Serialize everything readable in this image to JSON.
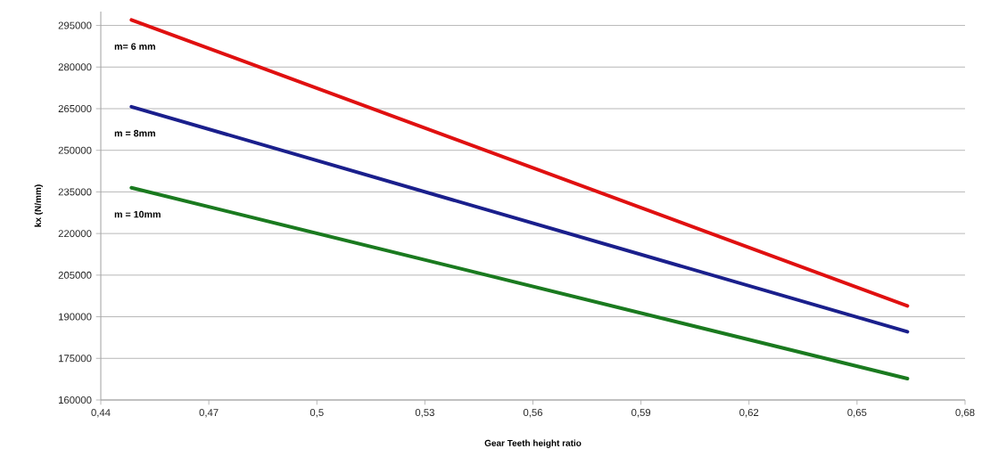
{
  "chart_data": {
    "type": "line",
    "xlabel": "Gear Teeth height ratio",
    "ylabel": "kx (N/mm)",
    "x": [
      0.4485,
      0.664
    ],
    "series": [
      {
        "name": "m= 6 mm",
        "color": "#e01010",
        "values": [
          297000,
          193900
        ]
      },
      {
        "name": "m =  8mm",
        "color": "#1a1f8c",
        "values": [
          265700,
          184600
        ]
      },
      {
        "name": "m = 10mm",
        "color": "#1a7a1f",
        "values": [
          236500,
          167700
        ]
      }
    ],
    "xlim": [
      0.44,
      0.68
    ],
    "xticks": [
      {
        "value": 0.44,
        "label": "0,44"
      },
      {
        "value": 0.47,
        "label": "0,47"
      },
      {
        "value": 0.5,
        "label": "0,5"
      },
      {
        "value": 0.53,
        "label": "0,53"
      },
      {
        "value": 0.56,
        "label": "0,56"
      },
      {
        "value": 0.59,
        "label": "0,59"
      },
      {
        "value": 0.62,
        "label": "0,62"
      },
      {
        "value": 0.65,
        "label": "0,65"
      },
      {
        "value": 0.68,
        "label": "0,68"
      }
    ],
    "ylim": [
      160000,
      300000
    ],
    "yticks": [
      160000,
      175000,
      190000,
      205000,
      220000,
      235000,
      250000,
      265000,
      280000,
      295000
    ],
    "grid": "y"
  }
}
